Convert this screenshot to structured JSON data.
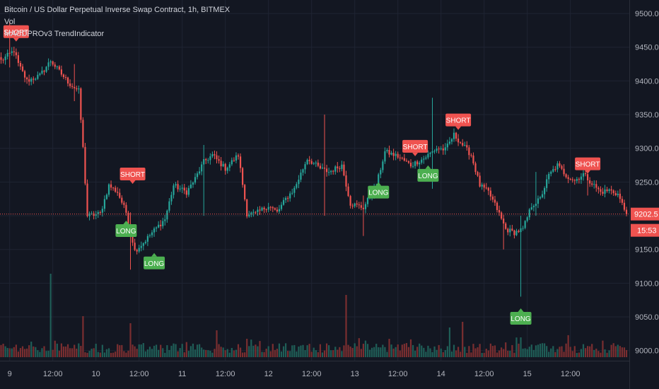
{
  "colors": {
    "background": "#131722",
    "grid": "#1f2433",
    "up": "#26a69a",
    "down": "#ef5350",
    "vol_up": "#1f5e57",
    "vol_down": "#7a2e30",
    "long_badge": "#4caf50",
    "short_badge": "#ef5350",
    "axis_text": "#b2b5be"
  },
  "legend": {
    "title": "Bitcoin / US Dollar Perpetual Inverse Swap Contract, 1h, BITMEX",
    "vol": "Vol",
    "indicator": "MACDPROv3 TrendIndicator"
  },
  "chart_data": {
    "type": "candlestick",
    "title": "Bitcoin / US Dollar Perpetual Inverse Swap Contract, 1h, BITMEX",
    "ylim": [
      8985,
      9520
    ],
    "y_ticks": [
      9000.0,
      9050.0,
      9100.0,
      9150.0,
      9200.0,
      9250.0,
      9300.0,
      9350.0,
      9400.0,
      9450.0,
      9500.0
    ],
    "x_ticks": [
      "9",
      "12:00",
      "10",
      "12:00",
      "11",
      "12:00",
      "12",
      "12:00",
      "13",
      "12:00",
      "14",
      "12:00",
      "15",
      "12:00"
    ],
    "x_tick_bars": [
      4,
      24,
      44,
      64,
      84,
      104,
      124,
      144,
      164,
      184,
      204,
      224,
      244,
      264
    ],
    "last_price": "9202.5",
    "last_price_value": 9202.5,
    "countdown": "15:53",
    "signals": [
      {
        "label": "SHORT",
        "bar": 7,
        "price": 9473
      },
      {
        "label": "SHORT",
        "bar": 61,
        "price": 9262
      },
      {
        "label": "LONG",
        "bar": 58,
        "price": 9178
      },
      {
        "label": "LONG",
        "bar": 71,
        "price": 9130
      },
      {
        "label": "LONG",
        "bar": 175,
        "price": 9235
      },
      {
        "label": "SHORT",
        "bar": 192,
        "price": 9303
      },
      {
        "label": "LONG",
        "bar": 198,
        "price": 9260
      },
      {
        "label": "SHORT",
        "bar": 212,
        "price": 9342
      },
      {
        "label": "LONG",
        "bar": 241,
        "price": 9048
      },
      {
        "label": "SHORT",
        "bar": 272,
        "price": 9277
      }
    ],
    "anchors": [
      [
        0,
        9430
      ],
      [
        6,
        9445
      ],
      [
        8,
        9425
      ],
      [
        12,
        9400
      ],
      [
        18,
        9408
      ],
      [
        23,
        9430
      ],
      [
        28,
        9410
      ],
      [
        32,
        9395
      ],
      [
        36,
        9385
      ],
      [
        38,
        9300
      ],
      [
        40,
        9200
      ],
      [
        46,
        9203
      ],
      [
        50,
        9245
      ],
      [
        54,
        9235
      ],
      [
        58,
        9205
      ],
      [
        60,
        9178
      ],
      [
        62,
        9148
      ],
      [
        66,
        9160
      ],
      [
        70,
        9175
      ],
      [
        76,
        9195
      ],
      [
        80,
        9245
      ],
      [
        86,
        9235
      ],
      [
        90,
        9255
      ],
      [
        94,
        9280
      ],
      [
        98,
        9290
      ],
      [
        104,
        9270
      ],
      [
        110,
        9290
      ],
      [
        114,
        9203
      ],
      [
        118,
        9203
      ],
      [
        124,
        9215
      ],
      [
        128,
        9205
      ],
      [
        132,
        9225
      ],
      [
        136,
        9240
      ],
      [
        142,
        9285
      ],
      [
        148,
        9270
      ],
      [
        152,
        9265
      ],
      [
        158,
        9275
      ],
      [
        162,
        9218
      ],
      [
        168,
        9212
      ],
      [
        174,
        9245
      ],
      [
        178,
        9295
      ],
      [
        184,
        9288
      ],
      [
        190,
        9275
      ],
      [
        196,
        9285
      ],
      [
        202,
        9300
      ],
      [
        206,
        9298
      ],
      [
        210,
        9320
      ],
      [
        214,
        9305
      ],
      [
        218,
        9290
      ],
      [
        222,
        9245
      ],
      [
        226,
        9235
      ],
      [
        230,
        9210
      ],
      [
        234,
        9180
      ],
      [
        238,
        9175
      ],
      [
        242,
        9180
      ],
      [
        246,
        9215
      ],
      [
        250,
        9225
      ],
      [
        254,
        9260
      ],
      [
        258,
        9275
      ],
      [
        262,
        9260
      ],
      [
        266,
        9252
      ],
      [
        270,
        9262
      ],
      [
        274,
        9248
      ],
      [
        278,
        9235
      ],
      [
        282,
        9238
      ],
      [
        286,
        9232
      ],
      [
        290,
        9202
      ]
    ],
    "spikes": [
      [
        4,
        9488,
        9420
      ],
      [
        34,
        9425,
        9370
      ],
      [
        60,
        9205,
        9120
      ],
      [
        94,
        9305,
        9200
      ],
      [
        150,
        9350,
        9200
      ],
      [
        168,
        9230,
        9170
      ],
      [
        200,
        9375,
        9240
      ],
      [
        233,
        9200,
        9150
      ],
      [
        241,
        9200,
        9080
      ],
      [
        248,
        9265,
        9200
      ],
      [
        272,
        9280,
        9230
      ]
    ],
    "bar_count": 291,
    "vol_max": 125,
    "vol_spikes": [
      [
        23,
        118
      ],
      [
        38,
        58
      ],
      [
        60,
        48
      ],
      [
        100,
        38
      ],
      [
        160,
        88
      ],
      [
        208,
        42
      ],
      [
        214,
        50
      ],
      [
        241,
        28
      ]
    ]
  }
}
